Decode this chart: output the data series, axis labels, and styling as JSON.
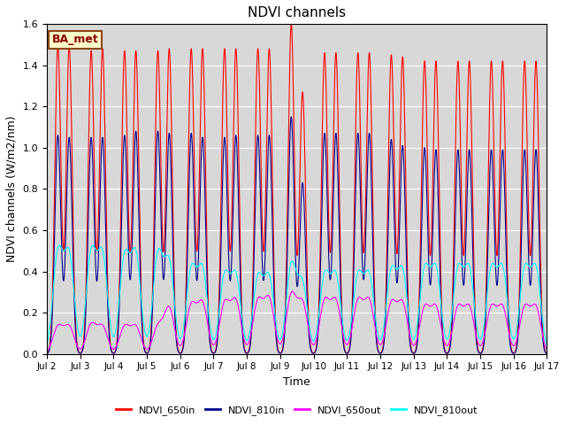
{
  "title": "NDVI channels",
  "xlabel": "Time",
  "ylabel": "NDVI channels (W/m2/nm)",
  "ylim": [
    0.0,
    1.6
  ],
  "xlim_days": [
    2,
    17
  ],
  "bg_color": "#d8d8d8",
  "label_box_text": "BA_met",
  "label_box_facecolor": "#ffffcc",
  "label_box_edgecolor": "#8b4513",
  "series": {
    "NDVI_650in": {
      "color": "#ff0000",
      "label": "NDVI_650in"
    },
    "NDVI_810in": {
      "color": "#00008b",
      "label": "NDVI_810in"
    },
    "NDVI_650out": {
      "color": "#ff00ff",
      "label": "NDVI_650out"
    },
    "NDVI_810out": {
      "color": "#00ffff",
      "label": "NDVI_810out"
    }
  },
  "peaks_per_day": 2,
  "peak_650in": [
    1.5,
    1.49,
    1.47,
    1.48,
    1.47,
    1.47,
    1.47,
    1.48,
    1.48,
    1.48,
    1.48,
    1.48,
    1.48,
    1.48,
    1.6,
    1.27,
    1.46,
    1.46,
    1.46,
    1.46,
    1.45,
    1.44,
    1.42,
    1.42,
    1.42,
    1.42,
    1.42,
    1.42,
    1.42,
    1.42
  ],
  "peak_810in": [
    1.06,
    1.05,
    1.05,
    1.05,
    1.06,
    1.08,
    1.08,
    1.07,
    1.07,
    1.05,
    1.05,
    1.06,
    1.06,
    1.06,
    1.15,
    0.83,
    1.07,
    1.07,
    1.07,
    1.07,
    1.04,
    1.01,
    1.0,
    0.99,
    0.99,
    0.99,
    0.99,
    0.99,
    0.99,
    0.99
  ],
  "peak_650out": [
    0.13,
    0.13,
    0.14,
    0.13,
    0.13,
    0.13,
    0.13,
    0.22,
    0.23,
    0.24,
    0.24,
    0.25,
    0.25,
    0.26,
    0.28,
    0.24,
    0.25,
    0.25,
    0.25,
    0.25,
    0.24,
    0.24,
    0.22,
    0.22,
    0.22,
    0.22,
    0.22,
    0.22,
    0.22,
    0.22
  ],
  "peak_810out": [
    0.48,
    0.47,
    0.48,
    0.47,
    0.46,
    0.47,
    0.47,
    0.43,
    0.4,
    0.4,
    0.37,
    0.37,
    0.36,
    0.36,
    0.42,
    0.33,
    0.37,
    0.37,
    0.37,
    0.37,
    0.39,
    0.39,
    0.4,
    0.4,
    0.4,
    0.4,
    0.4,
    0.4,
    0.4,
    0.4
  ],
  "xtick_positions": [
    2,
    3,
    4,
    5,
    6,
    7,
    8,
    9,
    10,
    11,
    12,
    13,
    14,
    15,
    16,
    17
  ],
  "xtick_labels": [
    "Jul 2",
    "Jul 3",
    "Jul 4",
    "Jul 5",
    "Jul 6",
    "Jul 7",
    "Jul 8",
    "Jul 9",
    "Jul 10",
    "Jul 11",
    "Jul 12",
    "Jul 13",
    "Jul 14",
    "Jul 15",
    "Jul 16",
    "Jul 17"
  ],
  "ytick_positions": [
    0.0,
    0.2,
    0.4,
    0.6,
    0.8,
    1.0,
    1.2,
    1.4,
    1.6
  ]
}
